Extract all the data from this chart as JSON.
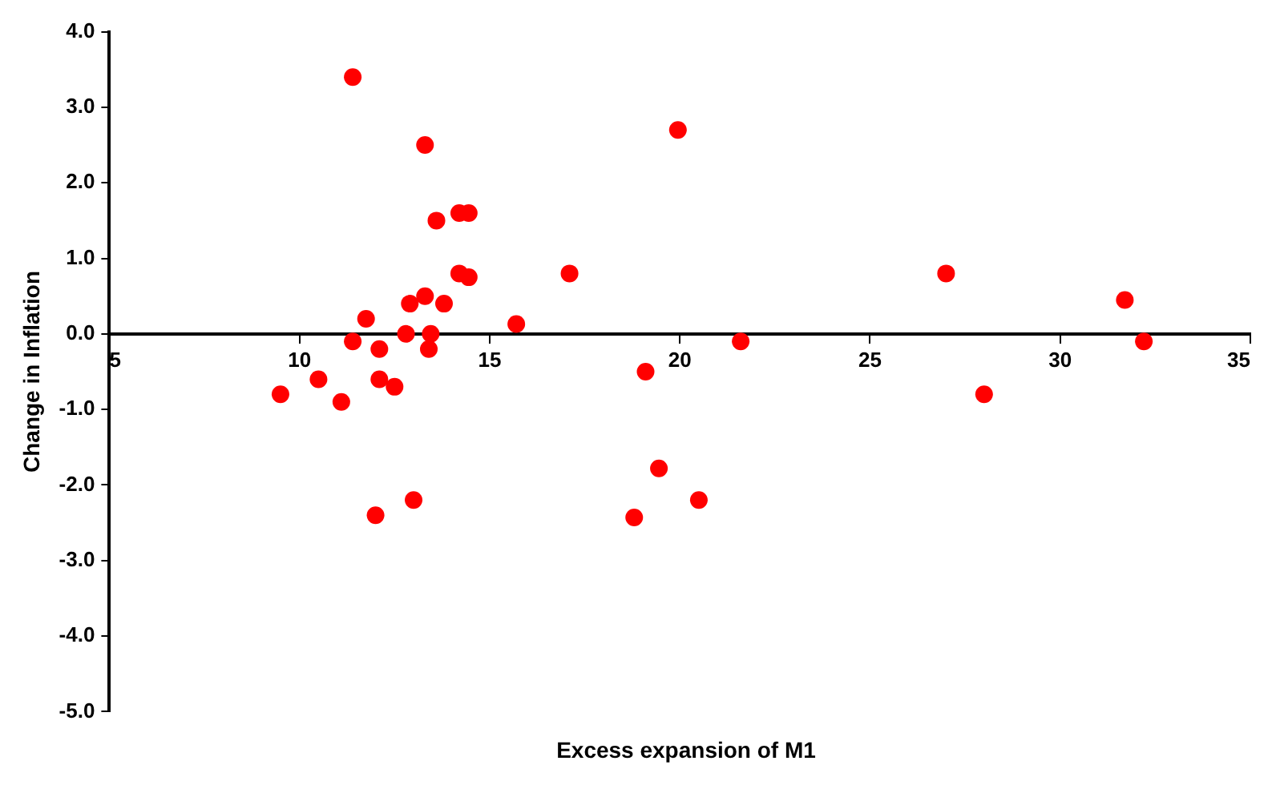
{
  "chart_data": {
    "type": "scatter",
    "xlabel": "Excess expansion of M1",
    "ylabel": "Change in Inflation",
    "x": [
      9.5,
      10.5,
      11.1,
      11.4,
      11.4,
      11.75,
      12.0,
      12.1,
      12.1,
      12.5,
      12.8,
      12.9,
      13.0,
      13.3,
      13.3,
      13.4,
      13.45,
      13.6,
      13.8,
      14.2,
      14.45,
      14.2,
      14.45,
      15.7,
      17.1,
      18.8,
      19.1,
      19.45,
      19.95,
      20.5,
      21.6,
      27.0,
      28.0,
      31.7,
      32.2
    ],
    "series": [
      {
        "color": "#ff0000",
        "values": [
          -0.8,
          -0.6,
          -0.9,
          -0.1,
          3.4,
          0.2,
          -2.4,
          -0.2,
          -0.6,
          -0.7,
          0.0,
          0.4,
          -2.2,
          2.5,
          0.5,
          -0.2,
          0.0,
          1.5,
          0.4,
          1.6,
          1.6,
          0.8,
          0.75,
          0.13,
          0.8,
          -2.43,
          -0.5,
          -1.78,
          2.7,
          -2.2,
          -0.1,
          0.8,
          -0.8,
          0.45,
          -0.1
        ]
      }
    ],
    "xlim": [
      5,
      35
    ],
    "xticks": [
      5,
      10,
      15,
      20,
      25,
      30,
      35
    ],
    "ylim": [
      -5,
      4
    ],
    "yticks": [
      {
        "value": -5,
        "label": "-5.0"
      },
      {
        "value": -4,
        "label": "-4.0"
      },
      {
        "value": -3,
        "label": "-3.0"
      },
      {
        "value": -2,
        "label": "-2.0"
      },
      {
        "value": -1,
        "label": "-1.0"
      },
      {
        "value": 0,
        "label": "0.0"
      },
      {
        "value": 1,
        "label": "1.0"
      },
      {
        "value": 2,
        "label": "2.0"
      },
      {
        "value": 3,
        "label": "3.0"
      },
      {
        "value": 4,
        "label": "4.0"
      }
    ],
    "grid": false,
    "legend": false,
    "marker": "circle"
  }
}
